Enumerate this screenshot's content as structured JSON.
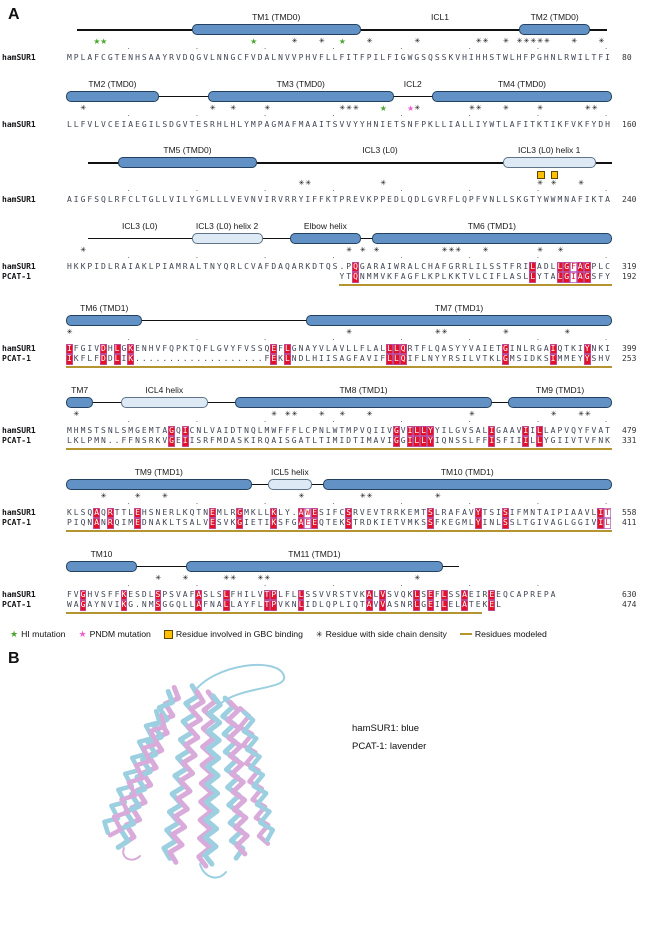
{
  "panel_a_label": "A",
  "panel_b_label": "B",
  "colors": {
    "helix_blue": "#6292c5",
    "helix_pale": "#dde9f4",
    "highlight_red": "#e31227",
    "underline_gold": "#b5952f",
    "hi_star_green": "#4ba52f",
    "pndm_star_pink": "#f060d0",
    "gbc_square_orange": "#ffc000"
  },
  "legend": {
    "items": [
      {
        "icon": "hi-mutation-star",
        "label": "HI mutation"
      },
      {
        "icon": "pndm-mutation-star",
        "label": "PNDM mutation"
      },
      {
        "icon": "gbc-binding-square",
        "label": "Residue involved in GBC binding"
      },
      {
        "icon": "side-chain-asterisk",
        "label": "Residue with side chain density"
      },
      {
        "icon": "modeled-dash",
        "label": "Residues modeled"
      }
    ]
  },
  "alignment": {
    "blocks": [
      {
        "structure": [
          [
            "line",
            2,
            23,
            ""
          ],
          [
            "helix",
            23,
            54,
            "TM1 (TMD0)"
          ],
          [
            "line",
            54,
            83,
            "ICL1"
          ],
          [
            "helix",
            83,
            96,
            "TM2 (TMD0)"
          ],
          [
            "line",
            96,
            99,
            ""
          ]
        ],
        "markers": [
          [
            5,
            "g"
          ],
          [
            6,
            "g"
          ],
          [
            28,
            "g"
          ],
          [
            34,
            "b"
          ],
          [
            38,
            "b"
          ],
          [
            41,
            "g"
          ],
          [
            45,
            "b"
          ],
          [
            52,
            "b"
          ],
          [
            61,
            "b"
          ],
          [
            62,
            "b"
          ],
          [
            65,
            "b"
          ],
          [
            67,
            "b"
          ],
          [
            68,
            "b"
          ],
          [
            69,
            "b"
          ],
          [
            70,
            "b"
          ],
          [
            71,
            "b"
          ],
          [
            75,
            "b"
          ],
          [
            79,
            "b"
          ]
        ],
        "rows": [
          {
            "label": "hamSUR1",
            "seq": "MPLAFCGTENHSAAYRVDQGVLNNGCFVDALNVVPHVFLLFITFPILFIGWGSQSSKVHIHHSTWLHFPGHNLRWILTFI",
            "num": "80"
          }
        ]
      },
      {
        "structure": [
          [
            "helix",
            0,
            17,
            "TM2 (TMD0)"
          ],
          [
            "line",
            17,
            26,
            ""
          ],
          [
            "helix",
            26,
            60,
            "TM3 (TMD0)"
          ],
          [
            "line",
            60,
            67,
            "ICL2"
          ],
          [
            "helix",
            67,
            100,
            "TM4 (TMD0)"
          ]
        ],
        "markers": [
          [
            3,
            "b"
          ],
          [
            22,
            "b"
          ],
          [
            25,
            "b"
          ],
          [
            30,
            "b"
          ],
          [
            41,
            "b"
          ],
          [
            42,
            "b"
          ],
          [
            43,
            "b"
          ],
          [
            47,
            "g"
          ],
          [
            51,
            "p"
          ],
          [
            52,
            "b"
          ],
          [
            60,
            "b"
          ],
          [
            61,
            "b"
          ],
          [
            65,
            "b"
          ],
          [
            70,
            "b"
          ],
          [
            77,
            "b"
          ],
          [
            78,
            "b"
          ]
        ],
        "rows": [
          {
            "label": "hamSUR1",
            "seq": "LLFVLVCEIAEGILSDGVTESRHLHLYMPAGMAFMAAITSVVYYHNIETSNFPKLLIALLIYWTLAFITKTIKFVKFYDH",
            "num": "160"
          }
        ]
      },
      {
        "structure": [
          [
            "line",
            4,
            9.5,
            ""
          ],
          [
            "helix",
            9.5,
            35,
            "TM5 (TMD0)"
          ],
          [
            "line",
            35,
            80,
            "ICL3 (L0)"
          ],
          [
            "helixpale",
            80,
            97,
            "ICL3 (L0) helix 1"
          ],
          [
            "line",
            97,
            100,
            ""
          ]
        ],
        "squares": [
          70,
          72
        ],
        "markers": [
          [
            35,
            "b"
          ],
          [
            36,
            "b"
          ],
          [
            47,
            "b"
          ],
          [
            70,
            "b"
          ],
          [
            72,
            "b"
          ],
          [
            76,
            "b"
          ]
        ],
        "rows": [
          {
            "label": "hamSUR1",
            "seq": "AIGFSQLRFCLTGLLVILYGMLLLVEVNVIRVRRYIFFKTPREVKPPEDLQDLGVRFLQPFVNLLSKGTYWWMNAFIKTA",
            "num": "240"
          }
        ]
      },
      {
        "structure": [
          [
            "line",
            4,
            23,
            "ICL3 (L0)"
          ],
          [
            "helixpale",
            23,
            36,
            "ICL3 (L0) helix 2"
          ],
          [
            "line",
            36,
            41,
            ""
          ],
          [
            "helix",
            41,
            54,
            "Elbow helix"
          ],
          [
            "line",
            54,
            56,
            ""
          ],
          [
            "helix",
            56,
            100,
            "TM6 (TMD1)"
          ]
        ],
        "markers": [
          [
            3,
            "b"
          ],
          [
            42,
            "b"
          ],
          [
            44,
            "b"
          ],
          [
            46,
            "b"
          ],
          [
            56,
            "b"
          ],
          [
            57,
            "b"
          ],
          [
            58,
            "b"
          ],
          [
            62,
            "b"
          ],
          [
            70,
            "b"
          ],
          [
            73,
            "b"
          ]
        ],
        "hl_id": [
          43,
          69,
          73,
          74,
          76,
          77
        ],
        "hl_sim": [
          75
        ],
        "rows": [
          {
            "label": "hamSUR1",
            "seq": "HKKPIDLRAIAKLPIAMRALTNYQRLCVAFDAQARKDTQS.PQGARAIWRALCHAFGRRLILSSTFRILADLLGFAGPLC",
            "num": "319"
          },
          {
            "label": "PCAT-1",
            "seq": "                                        YTQNMMVKFAGFLKPLKKTVLCIFLASLLYTALGIAGSFY",
            "num": "192"
          }
        ],
        "underline": [
          41,
          80
        ]
      },
      {
        "structure": [
          [
            "helix",
            0,
            14,
            "TM6 (TMD1)"
          ],
          [
            "line",
            14,
            44,
            ""
          ],
          [
            "helix",
            44,
            100,
            "TM7 (TMD1)"
          ]
        ],
        "markers": [
          [
            1,
            "b"
          ],
          [
            42,
            "b"
          ],
          [
            55,
            "b"
          ],
          [
            56,
            "b"
          ],
          [
            65,
            "b"
          ],
          [
            74,
            "b"
          ]
        ],
        "hl_id": [
          1,
          6,
          8,
          10,
          31,
          33,
          48,
          49,
          50,
          65,
          72,
          77
        ],
        "rows": [
          {
            "label": "hamSUR1",
            "seq": "IFGIVDHLGKENHVFQPKTQFLGVYFVSSQEFLGNAYVLAVLLFLALLLQRTFLQASYYVAIETGINLRGAIQTKIYNKI",
            "num": "399"
          },
          {
            "label": "PCAT-1",
            "seq": "IKFLFDDLIK...................FEKLNDLHIISAGFAVIFLLQIFLNYYRSILVTKLGMSIDKSIMMEYYSHV",
            "num": "253"
          }
        ],
        "underline": [
          1,
          80
        ]
      },
      {
        "structure": [
          [
            "helix",
            0,
            5,
            "TM7"
          ],
          [
            "line",
            5,
            10,
            ""
          ],
          [
            "helixpale",
            10,
            26,
            "ICL4 helix"
          ],
          [
            "line",
            26,
            31,
            ""
          ],
          [
            "helix",
            31,
            78,
            "TM8 (TMD1)"
          ],
          [
            "line",
            78,
            81,
            ""
          ],
          [
            "helix",
            81,
            100,
            "TM9 (TMD1)"
          ]
        ],
        "markers": [
          [
            2,
            "b"
          ],
          [
            31,
            "b"
          ],
          [
            33,
            "b"
          ],
          [
            34,
            "b"
          ],
          [
            38,
            "b"
          ],
          [
            41,
            "b"
          ],
          [
            45,
            "b"
          ],
          [
            60,
            "b"
          ],
          [
            72,
            "b"
          ],
          [
            76,
            "b"
          ],
          [
            77,
            "b"
          ]
        ],
        "hl_id": [
          16,
          18,
          49,
          51,
          52,
          53,
          54,
          63,
          68,
          70
        ],
        "rows": [
          {
            "label": "hamSUR1",
            "seq": "MHMSTSNLSMGEMTAGQICNLVAIDTNQLMWFFFLCPNLWTMPVQIIVGVILLYYILGVSALIGAAVIILLAPVQYFVAT",
            "num": "479"
          },
          {
            "label": "PCAT-1",
            "seq": "LKLPMN..FFNSRKVGEIISRFMDASKIRQAISGATLTIMIDTIMAVIGGILLYIQNSSLFFISFIIILLYGIIVTVFNK",
            "num": "331"
          }
        ],
        "underline": [
          1,
          80
        ]
      },
      {
        "structure": [
          [
            "helix",
            0,
            34,
            "TM9 (TMD1)"
          ],
          [
            "line",
            34,
            37,
            ""
          ],
          [
            "helixpale",
            37,
            45,
            "ICL5 helix"
          ],
          [
            "line",
            45,
            47,
            ""
          ],
          [
            "helix",
            47,
            100,
            "TM10 (TMD1)"
          ]
        ],
        "markers": [
          [
            6,
            "b"
          ],
          [
            11,
            "b"
          ],
          [
            15,
            "b"
          ],
          [
            35,
            "b"
          ],
          [
            44,
            "b"
          ],
          [
            45,
            "b"
          ],
          [
            55,
            "b"
          ]
        ],
        "hl_id": [
          5,
          7,
          11,
          22,
          26,
          31,
          35,
          37,
          42,
          54,
          61,
          65,
          79
        ],
        "hl_sim": [
          36,
          80
        ],
        "rows": [
          {
            "label": "hamSUR1",
            "seq": "KLSQAQRTTLEHSNERLKQTNEMLRGMKLLKLY.AWESIFCSRVEVTRRKEMTSLRAFAVYTSISIFMNTAIPIAAVLIT",
            "num": "558"
          },
          {
            "label": "PCAT-1",
            "seq": "PIQNANRQIMEDNAKLTSALVESVKGIETIKSFGAEEQTEKSTRDKIETVMKSSFKEGMLYINLSSLTGIVAGLGGIVIL",
            "num": "411"
          }
        ],
        "underline": [
          1,
          80
        ]
      },
      {
        "structure": [
          [
            "helix",
            0,
            13,
            "TM10"
          ],
          [
            "line",
            13,
            22,
            ""
          ],
          [
            "helix",
            22,
            69,
            "TM11 (TMD1)"
          ],
          [
            "line",
            69,
            72,
            ""
          ]
        ],
        "markers": [
          [
            14,
            "b"
          ],
          [
            18,
            "b"
          ],
          [
            24,
            "b"
          ],
          [
            25,
            "b"
          ],
          [
            29,
            "b"
          ],
          [
            30,
            "b"
          ],
          [
            52,
            "b"
          ]
        ],
        "hl_id": [
          3,
          9,
          14,
          20,
          24,
          30,
          31,
          35,
          45,
          47,
          52,
          54,
          56,
          59,
          63
        ],
        "rows": [
          {
            "label": "hamSUR1",
            "seq": "FVGHVSFFKESDLSPSVAFASLSLFHILVTPLFLLSSVVRSTVKALVSVQKLSEFLSSAEIREEQCAPREPA",
            "num": "630"
          },
          {
            "label": "PCAT-1",
            "seq": "WAGAYNVIKG.NMSGGQLLAFNALLAYFLTPVKNLIDLQPLIQTAVVASNRLGEILELATEKEL",
            "num": "474"
          }
        ],
        "underline": [
          1,
          61
        ]
      }
    ]
  },
  "panel_b": {
    "caption_lines": [
      "hamSUR1: blue",
      "PCAT-1: lavender"
    ],
    "ribbon": {
      "cyan": "#9ccfe0",
      "pink": "#d9abda",
      "helices": [
        [
          96,
          36,
          46,
          192,
          "p",
          5
        ],
        [
          90,
          40,
          40,
          196,
          "c",
          5
        ],
        [
          114,
          34,
          88,
          206,
          "c",
          5
        ],
        [
          119,
          40,
          94,
          210,
          "p",
          5
        ],
        [
          130,
          40,
          124,
          214,
          "p",
          5
        ],
        [
          135,
          44,
          130,
          212,
          "c",
          5
        ],
        [
          147,
          46,
          158,
          206,
          "c",
          5
        ],
        [
          152,
          50,
          163,
          202,
          "p",
          5
        ],
        [
          78,
          60,
          26,
          180,
          "c",
          4.5
        ],
        [
          83,
          64,
          32,
          184,
          "p",
          4.5
        ],
        [
          162,
          56,
          186,
          192,
          "p",
          4.5
        ],
        [
          166,
          60,
          189,
          188,
          "c",
          4.5
        ]
      ],
      "loops": [
        [
          "M114,40 C134,12 198,4 204,24 C208,38 160,34 140,52",
          "c",
          2
        ],
        [
          "M120,212 C124,226 138,230 146,220",
          "c",
          2
        ],
        [
          "M44,196 C40,206 52,212 60,204",
          "p",
          2
        ]
      ]
    }
  }
}
